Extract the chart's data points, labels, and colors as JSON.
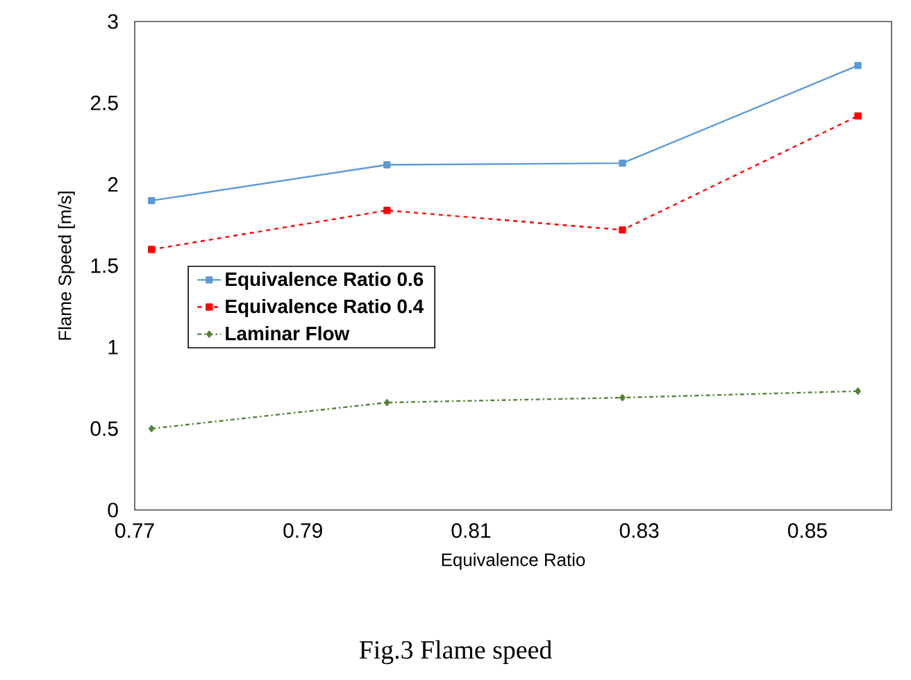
{
  "chart_data": {
    "type": "line",
    "xlabel": "Equivalence Ratio",
    "ylabel": "Flame Speed [m/s]",
    "x": [
      0.772,
      0.8,
      0.828,
      0.856
    ],
    "series": [
      {
        "name": "Equivalence Ratio 0.6",
        "color": "#5b9bd5",
        "values": [
          1.9,
          2.12,
          2.13,
          2.73
        ],
        "marker": "square",
        "line_style": "solid"
      },
      {
        "name": "Equivalence Ratio 0.4",
        "color": "#ff0000",
        "values": [
          1.6,
          1.84,
          1.72,
          2.42
        ],
        "marker": "square",
        "line_style": "dashed"
      },
      {
        "name": "Laminar Flow",
        "color": "#548235",
        "values": [
          0.5,
          0.66,
          0.69,
          0.73
        ],
        "marker": "diamond",
        "line_style": "dashdot"
      }
    ],
    "xlim": [
      0.77,
      0.86
    ],
    "xticks": [
      0.77,
      0.79,
      0.81,
      0.83,
      0.85
    ],
    "ylim": [
      0,
      3
    ],
    "yticks": [
      0,
      0.5,
      1,
      1.5,
      2,
      2.5,
      3
    ],
    "legend": "left",
    "grid": false,
    "annotations": [
      "Fig.3 Flame speed"
    ]
  }
}
